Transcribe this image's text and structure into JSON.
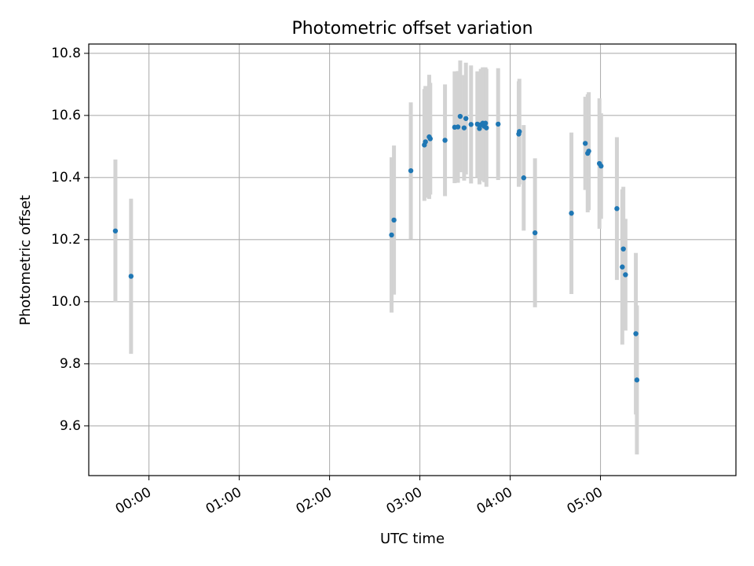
{
  "chart_data": {
    "type": "scatter",
    "title": "Photometric offset variation",
    "xlabel": "UTC time",
    "ylabel": "Photometric offset",
    "xlim_minutes": [
      -40,
      390
    ],
    "ylim": [
      9.44,
      10.83
    ],
    "x_ticks": [
      {
        "minutes": 0,
        "label": "00:00"
      },
      {
        "minutes": 60,
        "label": "01:00"
      },
      {
        "minutes": 120,
        "label": "02:00"
      },
      {
        "minutes": 180,
        "label": "03:00"
      },
      {
        "minutes": 240,
        "label": "04:00"
      },
      {
        "minutes": 300,
        "label": "05:00"
      }
    ],
    "y_ticks": [
      {
        "value": 9.6,
        "label": "9.6"
      },
      {
        "value": 9.8,
        "label": "9.8"
      },
      {
        "value": 10.0,
        "label": "10.0"
      },
      {
        "value": 10.2,
        "label": "10.2"
      },
      {
        "value": 10.4,
        "label": "10.4"
      },
      {
        "value": 10.6,
        "label": "10.6"
      },
      {
        "value": 10.8,
        "label": "10.8"
      }
    ],
    "grid": true,
    "colors": {
      "point": "#1f77b4",
      "errorbar": "#d3d3d3",
      "grid": "#b0b0b0"
    },
    "points": [
      {
        "t": -22.3,
        "y": 10.228,
        "err": 0.23
      },
      {
        "t": -11.9,
        "y": 10.082,
        "err": 0.25
      },
      {
        "t": 161.2,
        "y": 10.215,
        "err": 0.25
      },
      {
        "t": 162.8,
        "y": 10.263,
        "err": 0.24
      },
      {
        "t": 174.0,
        "y": 10.422,
        "err": 0.22
      },
      {
        "t": 183.0,
        "y": 10.505,
        "err": 0.18
      },
      {
        "t": 183.7,
        "y": 10.515,
        "err": 0.18
      },
      {
        "t": 186.2,
        "y": 10.531,
        "err": 0.2
      },
      {
        "t": 186.9,
        "y": 10.525,
        "err": 0.18
      },
      {
        "t": 196.7,
        "y": 10.52,
        "err": 0.18
      },
      {
        "t": 203.1,
        "y": 10.562,
        "err": 0.18
      },
      {
        "t": 205.3,
        "y": 10.563,
        "err": 0.18
      },
      {
        "t": 206.8,
        "y": 10.597,
        "err": 0.18
      },
      {
        "t": 209.4,
        "y": 10.56,
        "err": 0.17
      },
      {
        "t": 210.6,
        "y": 10.59,
        "err": 0.18
      },
      {
        "t": 214.0,
        "y": 10.571,
        "err": 0.19
      },
      {
        "t": 218.2,
        "y": 10.572,
        "err": 0.17
      },
      {
        "t": 219.6,
        "y": 10.558,
        "err": 0.18
      },
      {
        "t": 220.5,
        "y": 10.57,
        "err": 0.18
      },
      {
        "t": 221.8,
        "y": 10.575,
        "err": 0.18
      },
      {
        "t": 222.8,
        "y": 10.565,
        "err": 0.18
      },
      {
        "t": 223.6,
        "y": 10.575,
        "err": 0.18
      },
      {
        "t": 224.2,
        "y": 10.56,
        "err": 0.19
      },
      {
        "t": 232.0,
        "y": 10.572,
        "err": 0.18
      },
      {
        "t": 245.7,
        "y": 10.54,
        "err": 0.17
      },
      {
        "t": 246.1,
        "y": 10.548,
        "err": 0.17
      },
      {
        "t": 249.0,
        "y": 10.399,
        "err": 0.17
      },
      {
        "t": 256.5,
        "y": 10.222,
        "err": 0.24
      },
      {
        "t": 280.7,
        "y": 10.285,
        "err": 0.26
      },
      {
        "t": 289.9,
        "y": 10.51,
        "err": 0.15
      },
      {
        "t": 291.5,
        "y": 10.478,
        "err": 0.19
      },
      {
        "t": 292.2,
        "y": 10.485,
        "err": 0.19
      },
      {
        "t": 299.3,
        "y": 10.445,
        "err": 0.21
      },
      {
        "t": 300.4,
        "y": 10.437,
        "err": 0.17
      },
      {
        "t": 310.9,
        "y": 10.3,
        "err": 0.23
      },
      {
        "t": 314.5,
        "y": 10.112,
        "err": 0.25
      },
      {
        "t": 315.2,
        "y": 10.17,
        "err": 0.2
      },
      {
        "t": 316.6,
        "y": 10.087,
        "err": 0.18
      },
      {
        "t": 323.5,
        "y": 9.897,
        "err": 0.26
      },
      {
        "t": 324.2,
        "y": 9.748,
        "err": 0.24
      }
    ]
  }
}
